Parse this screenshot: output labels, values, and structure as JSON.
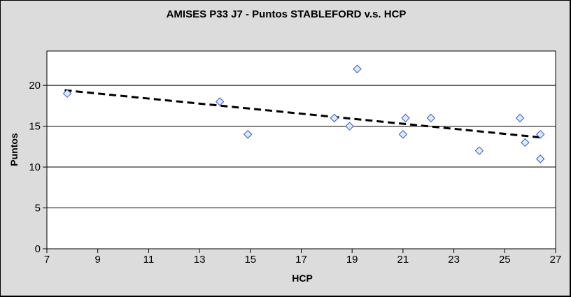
{
  "window": {
    "background_color": "#dcdcdc",
    "border_color": "#000000"
  },
  "chart_data": {
    "type": "scatter",
    "title": "AMISES P33 J7 - Puntos STABLEFORD v.s. HCP",
    "xlabel": "HCP",
    "ylabel": "Puntos",
    "xlim": [
      7,
      27
    ],
    "ylim": [
      0,
      24.2
    ],
    "x_ticks": [
      7,
      9,
      11,
      13,
      15,
      17,
      19,
      21,
      23,
      25,
      27
    ],
    "y_ticks": [
      0,
      5,
      10,
      15,
      20
    ],
    "grid": "horizontal-only",
    "legend": "none",
    "plot_bg_color": "#ffffff",
    "gridline_color": "#000000",
    "axis_color": "#000000",
    "series": [
      {
        "marker": "diamond",
        "marker_fill": "#d6f0fb",
        "marker_stroke": "#4050c8",
        "points": [
          [
            7.8,
            19
          ],
          [
            13.8,
            18
          ],
          [
            14.9,
            14
          ],
          [
            18.3,
            16
          ],
          [
            18.9,
            15
          ],
          [
            19.2,
            22
          ],
          [
            21.0,
            14
          ],
          [
            21.1,
            16
          ],
          [
            22.1,
            16
          ],
          [
            24.0,
            12
          ],
          [
            25.6,
            16
          ],
          [
            25.8,
            13
          ],
          [
            26.4,
            14
          ],
          [
            26.4,
            11
          ]
        ]
      }
    ],
    "trendline": {
      "style": "dashed",
      "color": "#000000",
      "x1": 7.7,
      "y1": 19.4,
      "x2": 26.5,
      "y2": 13.6
    }
  }
}
